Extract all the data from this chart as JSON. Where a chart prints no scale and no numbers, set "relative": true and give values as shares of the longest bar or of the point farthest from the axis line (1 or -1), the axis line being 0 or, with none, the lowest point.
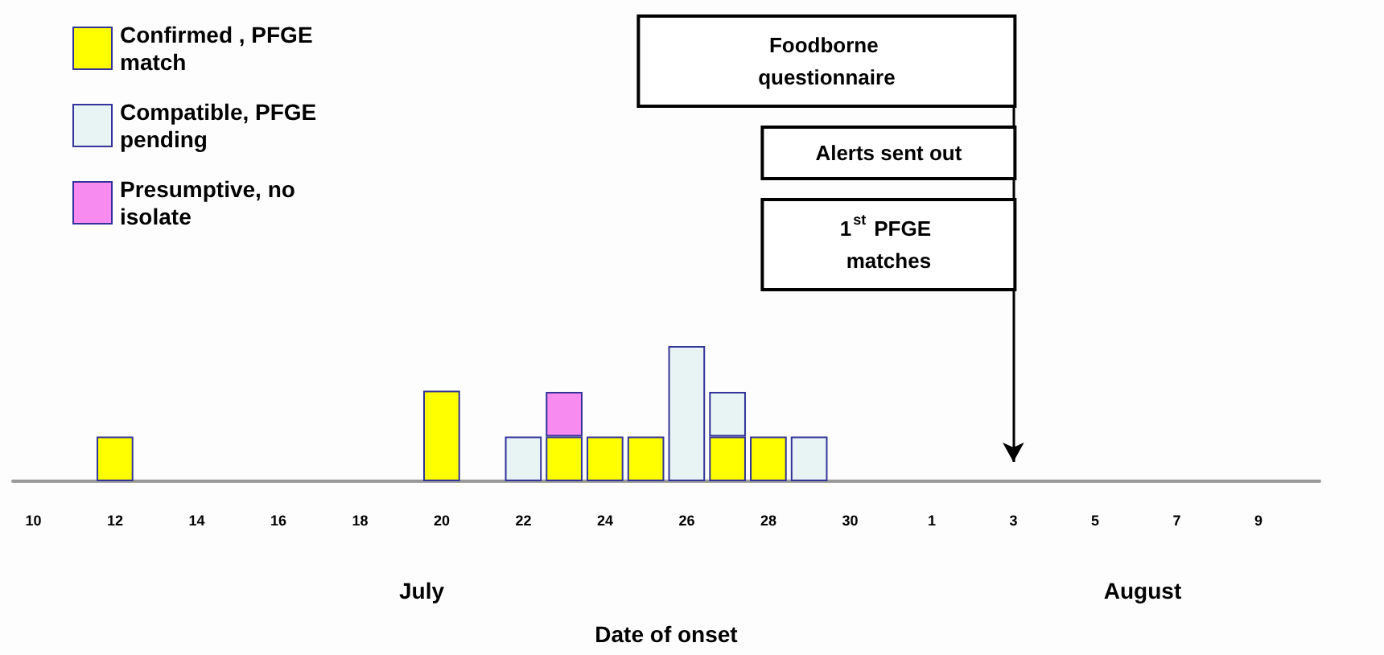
{
  "chart_data": {
    "type": "bar",
    "stacked": true,
    "relative": true,
    "xlabel": "Date of onset",
    "categories": [
      "10",
      null,
      "12",
      null,
      "14",
      null,
      "16",
      null,
      "18",
      null,
      "20",
      null,
      "22",
      null,
      "24",
      null,
      "26",
      null,
      "28",
      null,
      "30",
      null,
      "1",
      null,
      "3",
      null,
      "5",
      null,
      "7",
      null,
      "9",
      null
    ],
    "series": [
      {
        "name": "Confirmed , PFGE match",
        "color": "#ffff00",
        "values": [
          null,
          null,
          0.33,
          null,
          null,
          null,
          null,
          null,
          null,
          null,
          0.67,
          null,
          null,
          0.33,
          0.33,
          0.33,
          null,
          0.33,
          0.33,
          null,
          null,
          null,
          null,
          null,
          null,
          null,
          null,
          null,
          null,
          null,
          null,
          null
        ]
      },
      {
        "name": "Compatible, PFGE pending",
        "color": "#e8f4f4",
        "values": [
          null,
          null,
          null,
          null,
          null,
          null,
          null,
          null,
          null,
          null,
          null,
          null,
          0.33,
          null,
          null,
          null,
          1,
          0.33,
          null,
          0.33,
          null,
          null,
          null,
          null,
          null,
          null,
          null,
          null,
          null,
          null,
          null,
          null
        ]
      },
      {
        "name": "Presumptive, no isolate",
        "color": "#f78bf0",
        "values": [
          null,
          null,
          null,
          null,
          null,
          null,
          null,
          null,
          null,
          null,
          null,
          null,
          null,
          0.33,
          null,
          null,
          null,
          null,
          null,
          null,
          null,
          null,
          null,
          null,
          null,
          null,
          null,
          null,
          null,
          null,
          null,
          null
        ]
      }
    ],
    "ref_lines": [
      {
        "axis": "x",
        "value": "3",
        "color": "#000000"
      }
    ],
    "annotations": [
      "July",
      "August",
      "Foodborne questionnaire",
      "Alerts sent out",
      "1$^{st}$ PFGE matches"
    ],
    "legend": "top left",
    "grid": false
  }
}
